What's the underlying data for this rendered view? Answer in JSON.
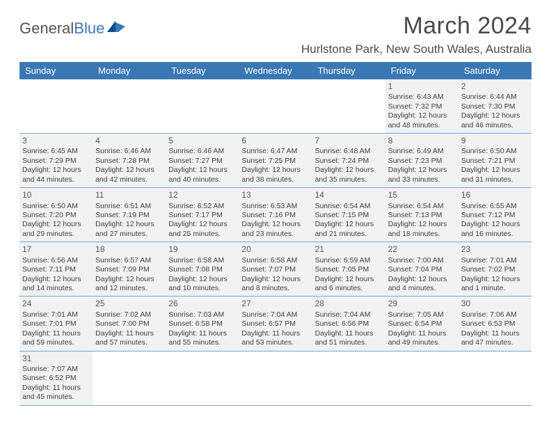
{
  "logo": {
    "general": "General",
    "blue": "Blue"
  },
  "title": "March 2024",
  "location": "Hurlstone Park, New South Wales, Australia",
  "title_color": "#4a4a4a",
  "header_bg": "#3a78b5",
  "header_fg": "#ffffff",
  "cell_bg": "#f2f2f2",
  "rule_color": "#7aa6cf",
  "day_names": [
    "Sunday",
    "Monday",
    "Tuesday",
    "Wednesday",
    "Thursday",
    "Friday",
    "Saturday"
  ],
  "weeks": [
    [
      null,
      null,
      null,
      null,
      null,
      {
        "n": "1",
        "sr": "6:43 AM",
        "ss": "7:32 PM",
        "dh": "12",
        "dm": "48"
      },
      {
        "n": "2",
        "sr": "6:44 AM",
        "ss": "7:30 PM",
        "dh": "12",
        "dm": "46"
      }
    ],
    [
      {
        "n": "3",
        "sr": "6:45 AM",
        "ss": "7:29 PM",
        "dh": "12",
        "dm": "44"
      },
      {
        "n": "4",
        "sr": "6:46 AM",
        "ss": "7:28 PM",
        "dh": "12",
        "dm": "42"
      },
      {
        "n": "5",
        "sr": "6:46 AM",
        "ss": "7:27 PM",
        "dh": "12",
        "dm": "40"
      },
      {
        "n": "6",
        "sr": "6:47 AM",
        "ss": "7:25 PM",
        "dh": "12",
        "dm": "38"
      },
      {
        "n": "7",
        "sr": "6:48 AM",
        "ss": "7:24 PM",
        "dh": "12",
        "dm": "35"
      },
      {
        "n": "8",
        "sr": "6:49 AM",
        "ss": "7:23 PM",
        "dh": "12",
        "dm": "33"
      },
      {
        "n": "9",
        "sr": "6:50 AM",
        "ss": "7:21 PM",
        "dh": "12",
        "dm": "31"
      }
    ],
    [
      {
        "n": "10",
        "sr": "6:50 AM",
        "ss": "7:20 PM",
        "dh": "12",
        "dm": "29"
      },
      {
        "n": "11",
        "sr": "6:51 AM",
        "ss": "7:19 PM",
        "dh": "12",
        "dm": "27"
      },
      {
        "n": "12",
        "sr": "6:52 AM",
        "ss": "7:17 PM",
        "dh": "12",
        "dm": "25"
      },
      {
        "n": "13",
        "sr": "6:53 AM",
        "ss": "7:16 PM",
        "dh": "12",
        "dm": "23"
      },
      {
        "n": "14",
        "sr": "6:54 AM",
        "ss": "7:15 PM",
        "dh": "12",
        "dm": "21"
      },
      {
        "n": "15",
        "sr": "6:54 AM",
        "ss": "7:13 PM",
        "dh": "12",
        "dm": "18"
      },
      {
        "n": "16",
        "sr": "6:55 AM",
        "ss": "7:12 PM",
        "dh": "12",
        "dm": "16"
      }
    ],
    [
      {
        "n": "17",
        "sr": "6:56 AM",
        "ss": "7:11 PM",
        "dh": "12",
        "dm": "14"
      },
      {
        "n": "18",
        "sr": "6:57 AM",
        "ss": "7:09 PM",
        "dh": "12",
        "dm": "12"
      },
      {
        "n": "19",
        "sr": "6:58 AM",
        "ss": "7:08 PM",
        "dh": "12",
        "dm": "10"
      },
      {
        "n": "20",
        "sr": "6:58 AM",
        "ss": "7:07 PM",
        "dh": "12",
        "dm": "8"
      },
      {
        "n": "21",
        "sr": "6:59 AM",
        "ss": "7:05 PM",
        "dh": "12",
        "dm": "6"
      },
      {
        "n": "22",
        "sr": "7:00 AM",
        "ss": "7:04 PM",
        "dh": "12",
        "dm": "4"
      },
      {
        "n": "23",
        "sr": "7:01 AM",
        "ss": "7:02 PM",
        "dh": "12",
        "dm": "1"
      }
    ],
    [
      {
        "n": "24",
        "sr": "7:01 AM",
        "ss": "7:01 PM",
        "dh": "11",
        "dm": "59"
      },
      {
        "n": "25",
        "sr": "7:02 AM",
        "ss": "7:00 PM",
        "dh": "11",
        "dm": "57"
      },
      {
        "n": "26",
        "sr": "7:03 AM",
        "ss": "6:58 PM",
        "dh": "11",
        "dm": "55"
      },
      {
        "n": "27",
        "sr": "7:04 AM",
        "ss": "6:57 PM",
        "dh": "11",
        "dm": "53"
      },
      {
        "n": "28",
        "sr": "7:04 AM",
        "ss": "6:56 PM",
        "dh": "11",
        "dm": "51"
      },
      {
        "n": "29",
        "sr": "7:05 AM",
        "ss": "6:54 PM",
        "dh": "11",
        "dm": "49"
      },
      {
        "n": "30",
        "sr": "7:06 AM",
        "ss": "6:53 PM",
        "dh": "11",
        "dm": "47"
      }
    ],
    [
      {
        "n": "31",
        "sr": "7:07 AM",
        "ss": "6:52 PM",
        "dh": "11",
        "dm": "45"
      },
      null,
      null,
      null,
      null,
      null,
      null
    ]
  ],
  "labels": {
    "sunrise": "Sunrise:",
    "sunset": "Sunset:",
    "daylight_prefix": "Daylight:",
    "hours_word": "hours",
    "and_word": "and",
    "minutes_word": "minutes.",
    "minute_word": "minute."
  }
}
